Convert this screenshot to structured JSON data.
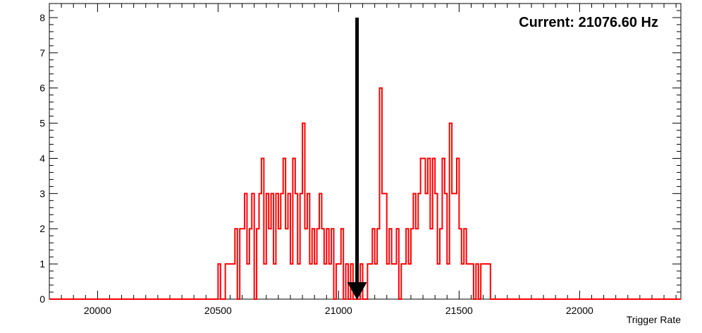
{
  "chart_data": {
    "type": "histogram",
    "xlabel": "Trigger Rate",
    "ylabel": "",
    "xlim": [
      19800,
      22420
    ],
    "ylim": [
      0,
      8.4
    ],
    "x_ticks": [
      20000,
      20500,
      21000,
      21500,
      22000
    ],
    "x_tick_labels": [
      "20000",
      "20500",
      "21000",
      "21500",
      "22000"
    ],
    "y_ticks": [
      0,
      1,
      2,
      3,
      4,
      5,
      6,
      7,
      8
    ],
    "y_tick_labels": [
      "0",
      "1",
      "2",
      "3",
      "4",
      "5",
      "6",
      "7",
      "8"
    ],
    "grid": false,
    "legend": false,
    "annotation": {
      "label": "Current: 21076.60 Hz",
      "marker_x": 21076.6,
      "arrow_top_y": 8
    },
    "line_color": "#ff0000",
    "arrow_color": "#000000",
    "series": [
      {
        "bins_x": [
          20500,
          20510,
          20520,
          20530,
          20540,
          20550,
          20560,
          20570,
          20580,
          20590,
          20600,
          20610,
          20620,
          20630,
          20640,
          20650,
          20660,
          20670,
          20680,
          20690,
          20700,
          20710,
          20720,
          20730,
          20740,
          20750,
          20760,
          20770,
          20780,
          20790,
          20800,
          20810,
          20820,
          20830,
          20840,
          20850,
          20860,
          20870,
          20880,
          20890,
          20900,
          20910,
          20920,
          20930,
          20940,
          20950,
          20960,
          20970,
          20980,
          20990,
          21000,
          21010,
          21020,
          21030,
          21040,
          21050,
          21060,
          21070,
          21080,
          21090,
          21100,
          21110,
          21120,
          21130,
          21140,
          21150,
          21160,
          21170,
          21180,
          21190,
          21200,
          21210,
          21220,
          21230,
          21240,
          21250,
          21260,
          21270,
          21280,
          21290,
          21300,
          21310,
          21320,
          21330,
          21340,
          21350,
          21360,
          21370,
          21380,
          21390,
          21400,
          21410,
          21420,
          21430,
          21440,
          21450,
          21460,
          21470,
          21480,
          21490,
          21500,
          21510,
          21520,
          21530,
          21540,
          21550,
          21560,
          21570,
          21580,
          21590,
          21600,
          21610,
          21620,
          21630,
          21640
        ],
        "values": [
          1,
          0,
          0,
          1,
          1,
          1,
          1,
          2,
          0,
          2,
          2,
          3,
          1,
          2,
          3,
          0,
          2,
          3,
          4,
          1,
          3,
          2,
          3,
          1,
          3,
          2,
          3,
          4,
          2,
          3,
          1,
          4,
          3,
          1,
          3,
          5,
          2,
          3,
          1,
          2,
          1,
          2,
          3,
          2,
          1,
          2,
          1,
          2,
          0,
          1,
          1,
          2,
          0,
          1,
          0,
          1,
          0,
          0,
          0,
          1,
          0,
          0,
          1,
          1,
          2,
          1,
          2,
          6,
          3,
          3,
          1,
          2,
          1,
          1,
          2,
          0,
          1,
          1,
          2,
          1,
          2,
          3,
          2,
          3,
          4,
          4,
          3,
          4,
          2,
          4,
          3,
          1,
          2,
          4,
          3,
          1,
          5,
          3,
          3,
          4,
          2,
          1,
          2,
          1,
          1,
          1,
          0,
          1,
          0,
          1,
          1,
          1,
          1,
          0,
          0
        ],
        "bin_width": 10
      }
    ]
  }
}
